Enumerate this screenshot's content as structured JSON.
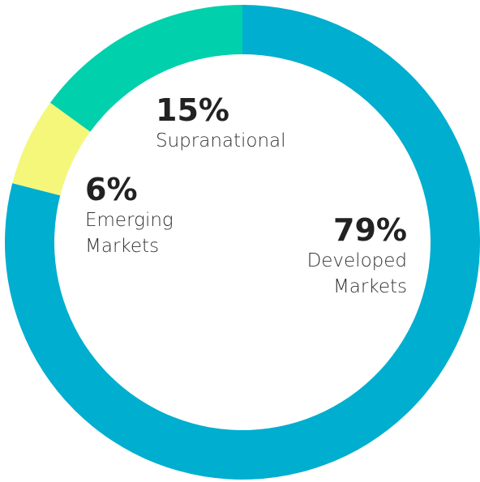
{
  "chart_data": {
    "type": "donut",
    "categories": [
      "Developed Markets",
      "Emerging Markets",
      "Supranational"
    ],
    "values": [
      79,
      6,
      15
    ],
    "value_labels": [
      "79%",
      "6%",
      "15%"
    ],
    "colors": [
      "#00aecf",
      "#f4f77a",
      "#00d0ac"
    ]
  }
}
